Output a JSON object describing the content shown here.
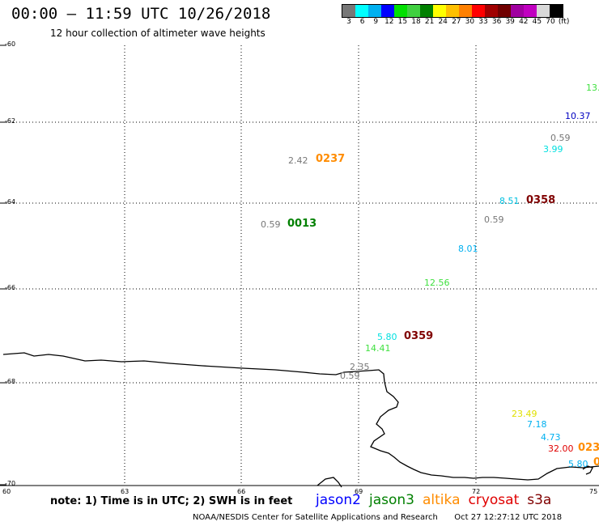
{
  "header": {
    "title": "00:00 – 11:59 UTC 10/26/2018",
    "subtitle": "12 hour collection of altimeter wave heights"
  },
  "legend": {
    "colors": [
      "#777777",
      "#00ffff",
      "#00b0f0",
      "#0000ff",
      "#00e000",
      "#40d040",
      "#008000",
      "#ffff00",
      "#ffc000",
      "#ff8000",
      "#ff0000",
      "#a00000",
      "#700000",
      "#a000a0",
      "#c000c0",
      "#d8d8d8",
      "#000000"
    ],
    "labels": [
      "3",
      "6",
      "9",
      "12",
      "15",
      "18",
      "21",
      "24",
      "27",
      "30",
      "33",
      "36",
      "39",
      "42",
      "45",
      "70",
      "(ft)"
    ]
  },
  "axes": {
    "y_labels": [
      "-60",
      "-62",
      "-64",
      "-66",
      "-68",
      "-70"
    ],
    "x_labels": [
      "60",
      "63",
      "66",
      "69",
      "72",
      "75"
    ]
  },
  "observations": [
    {
      "text": "13.",
      "color": "#40e040"
    },
    {
      "text": "10.37",
      "color": "#0000c0"
    },
    {
      "text": "0.59",
      "color": "#777777"
    },
    {
      "text": "3.99",
      "color": "#00e0e0"
    },
    {
      "text": "2.42",
      "color": "#777777"
    },
    {
      "text": "8.51",
      "color": "#00c0e0"
    },
    {
      "text": "0.59",
      "color": "#777777"
    },
    {
      "text": "0.59",
      "color": "#777777"
    },
    {
      "text": "8.01",
      "color": "#00b0f0"
    },
    {
      "text": "12.56",
      "color": "#40e040"
    },
    {
      "text": "5.80",
      "color": "#00e0e0"
    },
    {
      "text": "14.41",
      "color": "#40e040"
    },
    {
      "text": "2.35",
      "color": "#777777"
    },
    {
      "text": "0.59",
      "color": "#777777"
    },
    {
      "text": "23.49",
      "color": "#e0e000"
    },
    {
      "text": "7.18",
      "color": "#00b0f0"
    },
    {
      "text": "4.73",
      "color": "#00b0f0"
    },
    {
      "text": "32.00",
      "color": "#e00000"
    },
    {
      "text": "5.80",
      "color": "#00b0f0"
    }
  ],
  "pass_times": [
    {
      "text": "0237",
      "color": "#ff8c00"
    },
    {
      "text": "0013",
      "color": "#008000"
    },
    {
      "text": "0358",
      "color": "#800000"
    },
    {
      "text": "0359",
      "color": "#800000"
    },
    {
      "text": "023",
      "color": "#ff8c00"
    },
    {
      "text": "0",
      "color": "#ff8c00"
    }
  ],
  "note": "note: 1) Time is in UTC; 2) SWH is in feet",
  "satellites": [
    {
      "name": "jason2",
      "color": "#0000ff"
    },
    {
      "name": "jason3",
      "color": "#008000"
    },
    {
      "name": "altika",
      "color": "#ff8c00"
    },
    {
      "name": "cryosat",
      "color": "#e00000"
    },
    {
      "name": "s3a",
      "color": "#800000"
    }
  ],
  "footer": {
    "credit": "NOAA/NESDIS Center for Satellite Applications and Research",
    "timestamp": "Oct 27 12:27:12 UTC 2018"
  }
}
